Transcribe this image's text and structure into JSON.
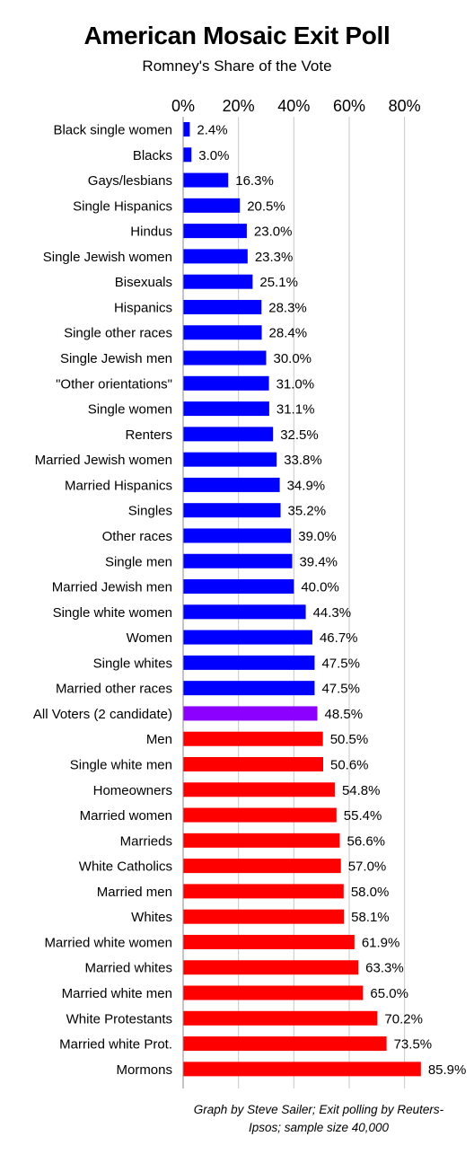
{
  "chart_data": {
    "type": "bar",
    "orientation": "horizontal",
    "title": "American Mosaic Exit Poll",
    "subtitle": "Romney's Share of the Vote",
    "xlim": [
      0,
      90
    ],
    "ticks": [
      0,
      20,
      40,
      60,
      80
    ],
    "tick_labels": [
      "0%",
      "20%",
      "40%",
      "60%",
      "80%"
    ],
    "grid": true,
    "colors": {
      "below_half": "#0000ff",
      "all_voters": "#8b00ff",
      "above_half": "#ff0000",
      "grid": "#c8c8c8",
      "axis": "#888888"
    },
    "categories": [
      "Black single women",
      "Blacks",
      "Gays/lesbians",
      "Single Hispanics",
      "Hindus",
      "Single Jewish women",
      "Bisexuals",
      "Hispanics",
      "Single other races",
      "Single Jewish men",
      "\"Other orientations\"",
      "Single women",
      "Renters",
      "Married Jewish women",
      "Married Hispanics",
      "Singles",
      "Other races",
      "Single men",
      "Married Jewish men",
      "Single white women",
      "Women",
      "Single whites",
      "Married other races",
      "All Voters (2 candidate)",
      "Men",
      "Single white men",
      "Homeowners",
      "Married women",
      "Marrieds",
      "White Catholics",
      "Married men",
      "Whites",
      "Married white women",
      "Married whites",
      "Married white men",
      "White Protestants",
      "Married white Prot.",
      "Mormons"
    ],
    "values": [
      2.4,
      3.0,
      16.3,
      20.5,
      23.0,
      23.3,
      25.1,
      28.3,
      28.4,
      30.0,
      31.0,
      31.1,
      32.5,
      33.8,
      34.9,
      35.2,
      39.0,
      39.4,
      40.0,
      44.3,
      46.7,
      47.5,
      47.5,
      48.5,
      50.5,
      50.6,
      54.8,
      55.4,
      56.6,
      57.0,
      58.0,
      58.1,
      61.9,
      63.3,
      65.0,
      70.2,
      73.5,
      85.9
    ],
    "value_labels": [
      "2.4%",
      "3.0%",
      "16.3%",
      "20.5%",
      "23.0%",
      "23.3%",
      "25.1%",
      "28.3%",
      "28.4%",
      "30.0%",
      "31.0%",
      "31.1%",
      "32.5%",
      "33.8%",
      "34.9%",
      "35.2%",
      "39.0%",
      "39.4%",
      "40.0%",
      "44.3%",
      "46.7%",
      "47.5%",
      "47.5%",
      "48.5%",
      "50.5%",
      "50.6%",
      "54.8%",
      "55.4%",
      "56.6%",
      "57.0%",
      "58.0%",
      "58.1%",
      "61.9%",
      "63.3%",
      "65.0%",
      "70.2%",
      "73.5%",
      "85.9%"
    ],
    "highlight_category": "All Voters (2 candidate)"
  },
  "credit": "Graph by Steve Sailer; Exit polling by Reuters-Ipsos; sample size 40,000"
}
